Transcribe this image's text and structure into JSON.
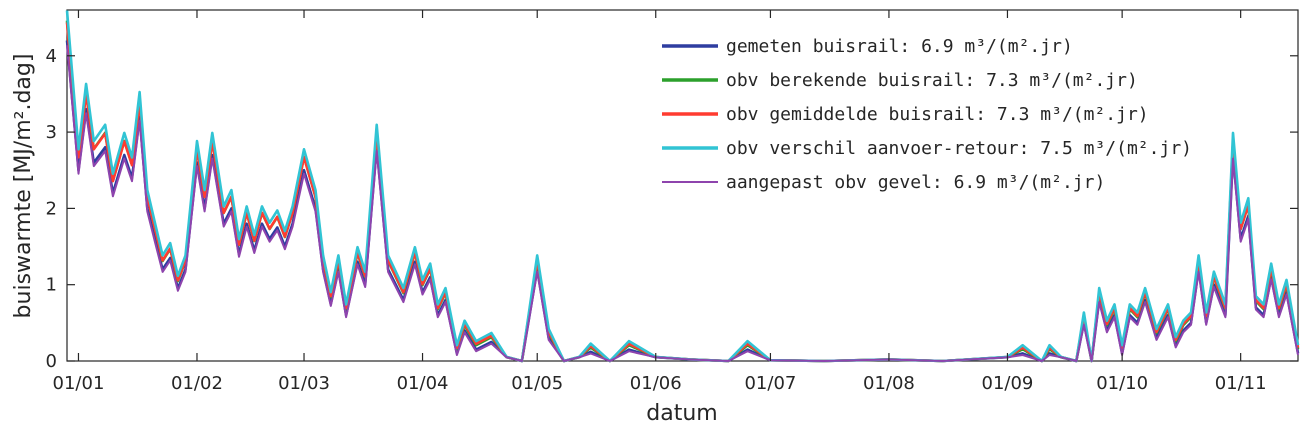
{
  "chart_data": {
    "type": "line",
    "xlabel": "datum",
    "ylabel": "buiswarmte [MJ/m².dag]",
    "ylim": [
      0,
      4.6
    ],
    "xlim": [
      "2017-12-29",
      "2018-11-16"
    ],
    "x_ticks": [
      {
        "date": "2018-01-01",
        "label": "01/01"
      },
      {
        "date": "2018-02-01",
        "label": "01/02"
      },
      {
        "date": "2018-03-01",
        "label": "01/03"
      },
      {
        "date": "2018-04-01",
        "label": "01/04"
      },
      {
        "date": "2018-05-01",
        "label": "01/05"
      },
      {
        "date": "2018-06-01",
        "label": "01/06"
      },
      {
        "date": "2018-07-01",
        "label": "01/07"
      },
      {
        "date": "2018-08-01",
        "label": "01/08"
      },
      {
        "date": "2018-09-01",
        "label": "01/09"
      },
      {
        "date": "2018-10-01",
        "label": "01/10"
      },
      {
        "date": "2018-11-01",
        "label": "01/11"
      }
    ],
    "y_ticks": [
      0,
      1,
      2,
      3,
      4
    ],
    "grid": false,
    "legend_position": "top-right",
    "series_base": {
      "x": [
        "2017-12-29",
        "2018-01-01",
        "2018-01-03",
        "2018-01-05",
        "2018-01-08",
        "2018-01-10",
        "2018-01-13",
        "2018-01-15",
        "2018-01-17",
        "2018-01-19",
        "2018-01-21",
        "2018-01-23",
        "2018-01-25",
        "2018-01-27",
        "2018-01-29",
        "2018-02-01",
        "2018-02-03",
        "2018-02-05",
        "2018-02-08",
        "2018-02-10",
        "2018-02-12",
        "2018-02-14",
        "2018-02-16",
        "2018-02-18",
        "2018-02-20",
        "2018-02-22",
        "2018-02-24",
        "2018-02-26",
        "2018-03-01",
        "2018-03-04",
        "2018-03-06",
        "2018-03-08",
        "2018-03-10",
        "2018-03-12",
        "2018-03-15",
        "2018-03-17",
        "2018-03-20",
        "2018-03-23",
        "2018-03-25",
        "2018-03-27",
        "2018-03-30",
        "2018-04-01",
        "2018-04-03",
        "2018-04-05",
        "2018-04-07",
        "2018-04-10",
        "2018-04-12",
        "2018-04-15",
        "2018-04-19",
        "2018-04-23",
        "2018-04-27",
        "2018-05-01",
        "2018-05-04",
        "2018-05-08",
        "2018-05-12",
        "2018-05-15",
        "2018-05-20",
        "2018-05-25",
        "2018-06-01",
        "2018-06-10",
        "2018-06-20",
        "2018-06-25",
        "2018-07-01",
        "2018-07-15",
        "2018-08-01",
        "2018-08-15",
        "2018-09-01",
        "2018-09-05",
        "2018-09-10",
        "2018-09-12",
        "2018-09-15",
        "2018-09-19",
        "2018-09-21",
        "2018-09-23",
        "2018-09-25",
        "2018-09-27",
        "2018-09-29",
        "2018-10-01",
        "2018-10-03",
        "2018-10-05",
        "2018-10-07",
        "2018-10-10",
        "2018-10-13",
        "2018-10-15",
        "2018-10-17",
        "2018-10-19",
        "2018-10-21",
        "2018-10-23",
        "2018-10-25",
        "2018-10-28",
        "2018-10-30",
        "2018-11-01",
        "2018-11-03",
        "2018-11-05",
        "2018-11-07",
        "2018-11-09",
        "2018-11-11",
        "2018-11-13",
        "2018-11-16"
      ],
      "y": [
        4.2,
        2.5,
        3.3,
        2.6,
        2.8,
        2.2,
        2.7,
        2.4,
        3.2,
        2.0,
        1.6,
        1.2,
        1.35,
        0.95,
        1.2,
        2.6,
        2.0,
        2.7,
        1.8,
        2.0,
        1.4,
        1.8,
        1.45,
        1.8,
        1.6,
        1.75,
        1.5,
        1.8,
        2.5,
        2.0,
        1.2,
        0.75,
        1.2,
        0.6,
        1.3,
        1.0,
        2.8,
        1.2,
        1.0,
        0.8,
        1.3,
        0.9,
        1.1,
        0.6,
        0.8,
        0.1,
        0.4,
        0.15,
        0.25,
        0.05,
        0.0,
        1.2,
        0.3,
        0.0,
        0.05,
        0.12,
        0.0,
        0.15,
        0.05,
        0.02,
        0.0,
        0.15,
        0.01,
        0.0,
        0.02,
        0.0,
        0.05,
        0.1,
        0.0,
        0.1,
        0.05,
        0.0,
        0.5,
        0.0,
        0.8,
        0.4,
        0.6,
        0.1,
        0.6,
        0.5,
        0.8,
        0.3,
        0.6,
        0.2,
        0.4,
        0.5,
        1.2,
        0.5,
        1.0,
        0.6,
        2.7,
        1.6,
        1.9,
        0.7,
        0.6,
        1.1,
        0.6,
        0.9,
        0.1
      ]
    },
    "series": [
      {
        "name": "gemeten buisrail: 6.9 m³/(m².jr)",
        "color": "#2e3da0",
        "offset": 0.0,
        "scale": 1.0
      },
      {
        "name": "obv berekende buisrail: 7.3 m³/(m².jr)",
        "color": "#2ca02c",
        "offset": 0.05,
        "scale": 1.05
      },
      {
        "name": "obv gemiddelde buisrail: 7.3 m³/(m².jr)",
        "color": "#ff3b30",
        "offset": 0.07,
        "scale": 1.04
      },
      {
        "name": "obv verschil aanvoer-retour: 7.5 m³/(m².jr)",
        "color": "#31c4d4",
        "offset": 0.1,
        "scale": 1.07
      },
      {
        "name": "aangepast obv gevel: 6.9 m³/(m².jr)",
        "color": "#8e44ad",
        "offset": -0.02,
        "scale": 0.99
      }
    ]
  }
}
